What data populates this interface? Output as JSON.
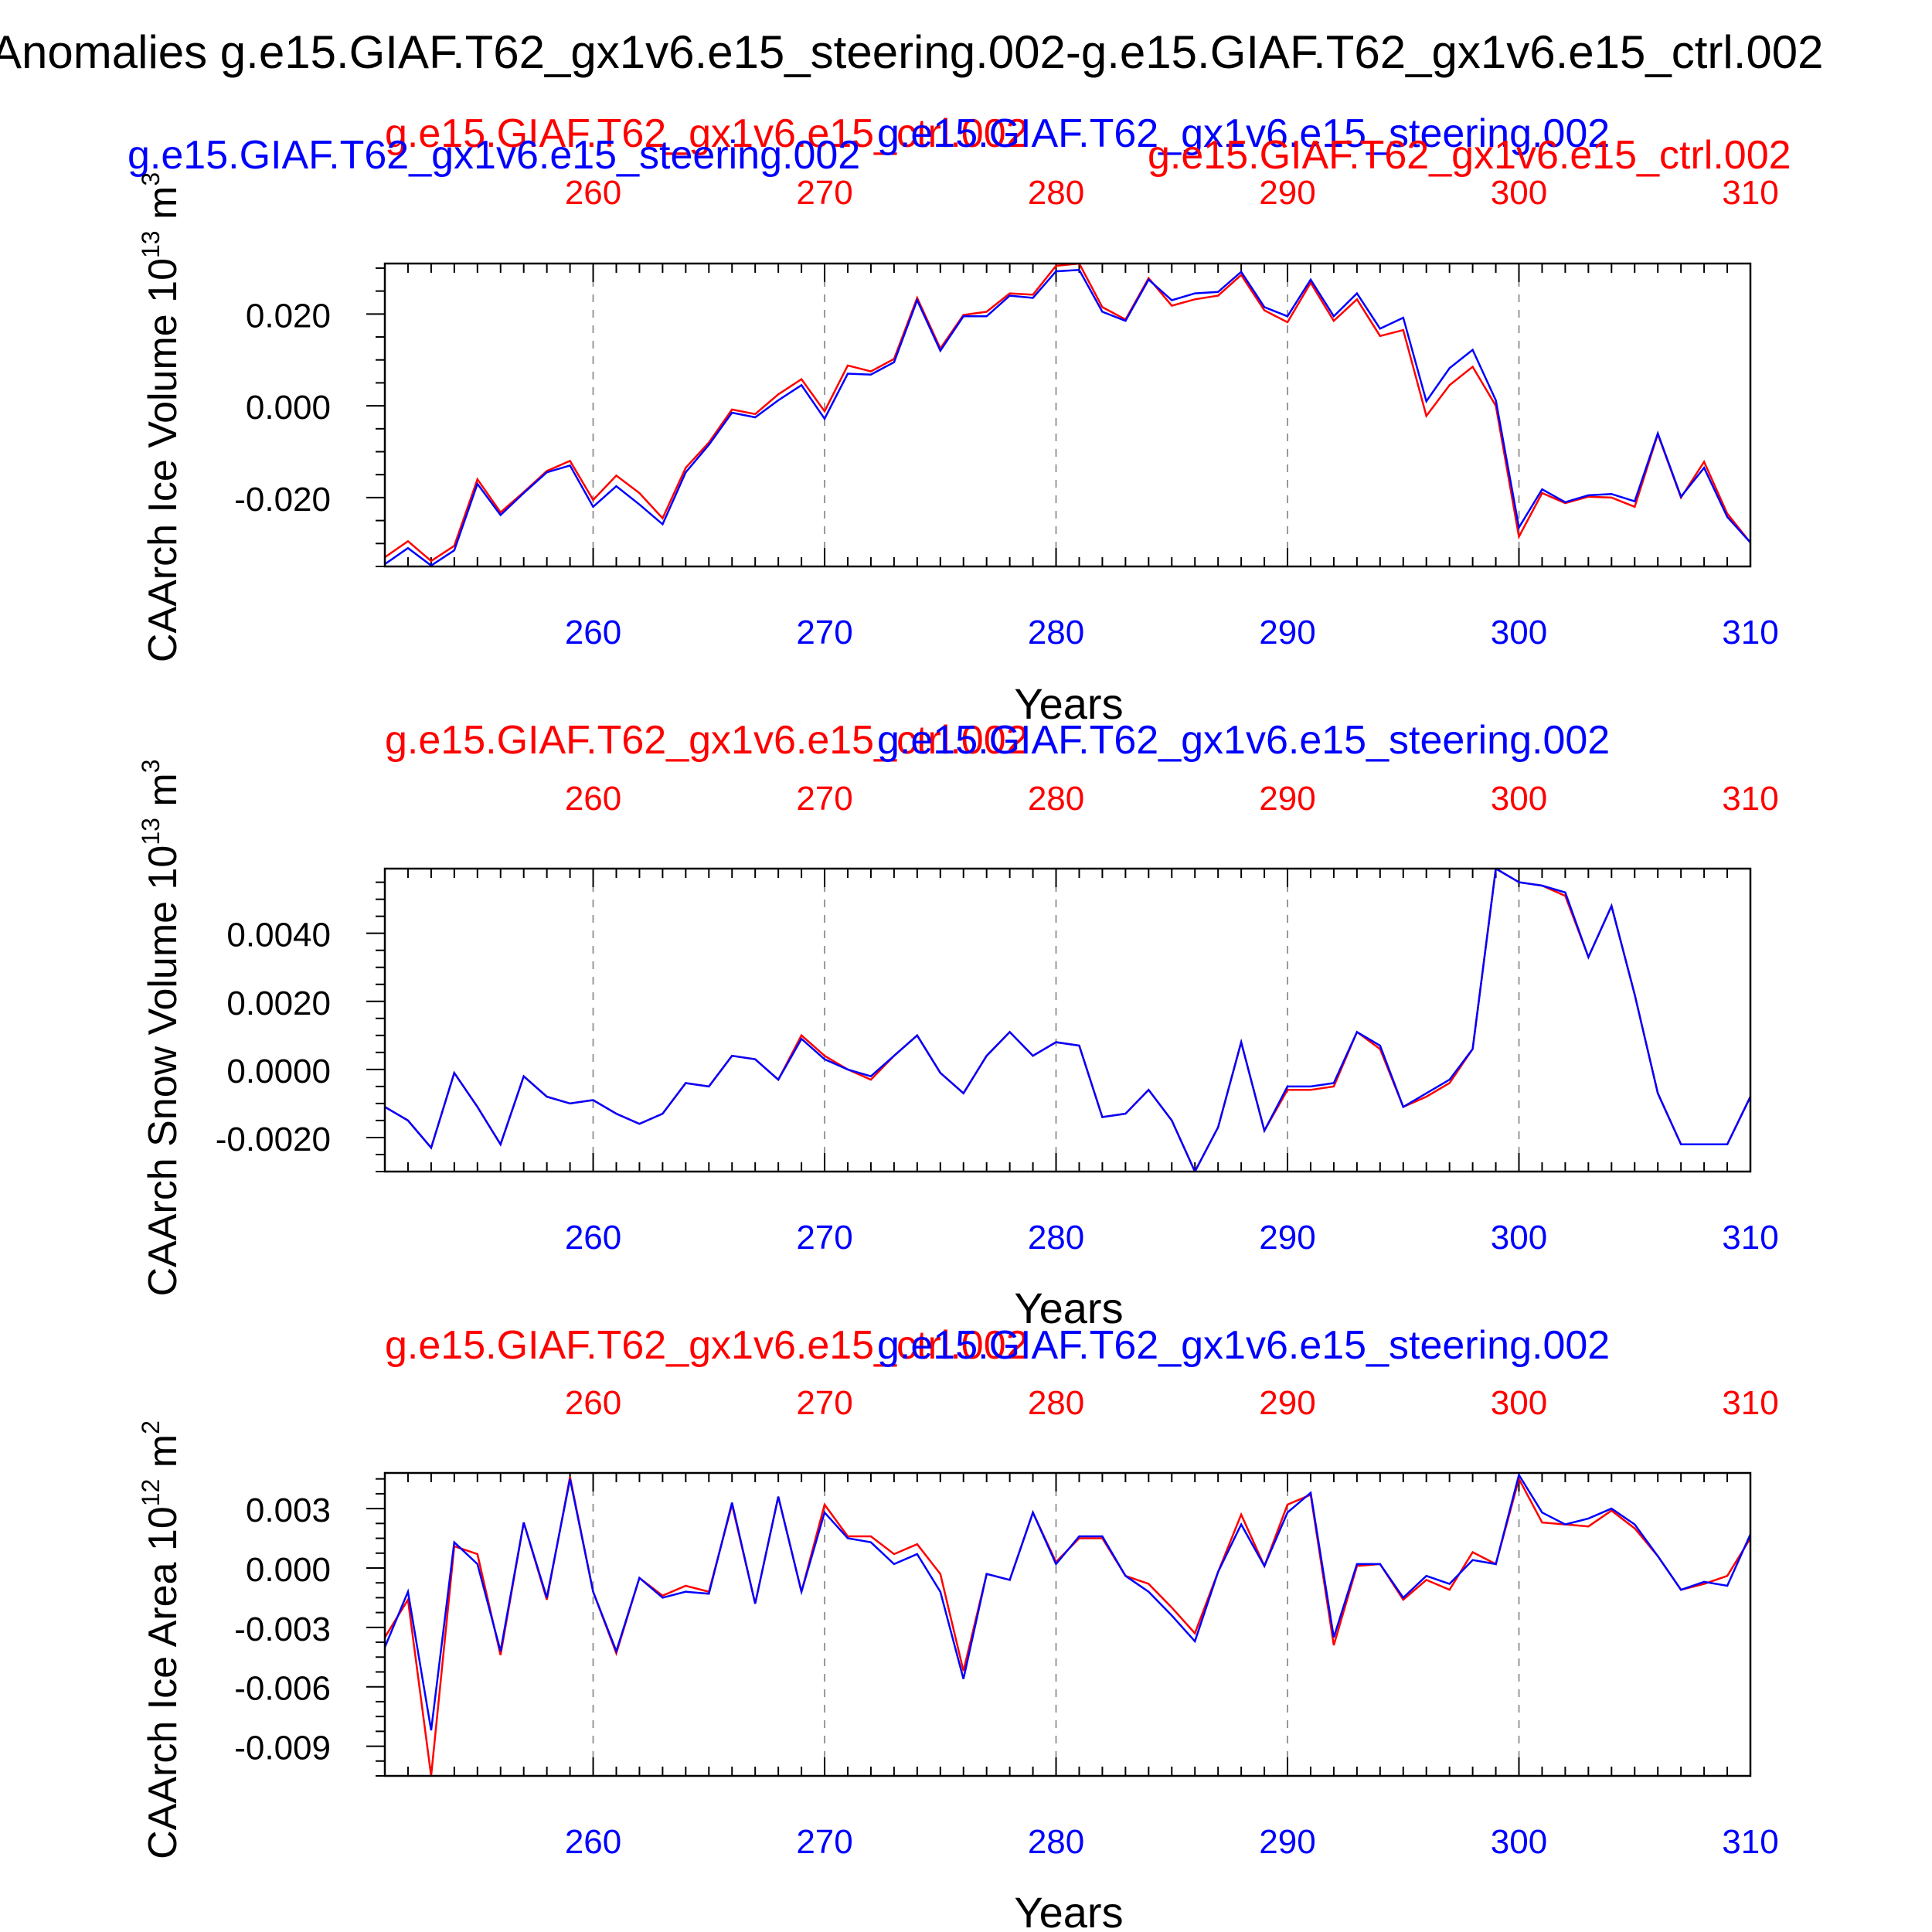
{
  "figure": {
    "title": "Anomalies g.e15.GIAF.T62_gx1v6.e15_steering.002-g.e15.GIAF.T62_gx1v6.e15_ctrl.002",
    "xlabel": "Years",
    "colors": {
      "steering": "#0000ff",
      "ctrl": "#ff0000",
      "frame": "#000000",
      "grid": "#999999"
    }
  },
  "legend_labels": {
    "steering": "g.e15.GIAF.T62_gx1v6.e15_steering.002",
    "ctrl": "g.e15.GIAF.T62_gx1v6.e15_ctrl.002"
  },
  "chart_data": [
    {
      "type": "line",
      "ylabel": "CAArch Ice Volume 10",
      "ylabel_exp": "13",
      "ylabel_unit": " m",
      "ylabel_unit_exp": "3",
      "xlim": [
        251,
        310
      ],
      "ylim": [
        -0.035,
        0.031
      ],
      "yticks": [
        -0.02,
        0.0,
        0.02
      ],
      "ytick_labels": [
        "-0.020",
        "0.000",
        "0.020"
      ],
      "xticks": [
        260,
        270,
        280,
        290,
        300,
        310
      ],
      "xtick_labels": [
        "260",
        "270",
        "280",
        "290",
        "300",
        "310"
      ],
      "x": [
        251,
        252,
        253,
        254,
        255,
        256,
        257,
        258,
        259,
        260,
        261,
        262,
        263,
        264,
        265,
        266,
        267,
        268,
        269,
        270,
        271,
        272,
        273,
        274,
        275,
        276,
        277,
        278,
        279,
        280,
        281,
        282,
        283,
        284,
        285,
        286,
        287,
        288,
        289,
        290,
        291,
        292,
        293,
        294,
        295,
        296,
        297,
        298,
        299,
        300,
        301,
        302,
        303,
        304,
        305,
        306,
        307,
        308,
        309,
        310
      ],
      "series": [
        {
          "name": "g.e15.GIAF.T62_gx1v6.e15_steering.002",
          "color": "#0000ff",
          "values": [
            -0.0345,
            -0.031,
            -0.0348,
            -0.0315,
            -0.017,
            -0.0238,
            -0.019,
            -0.0145,
            -0.013,
            -0.022,
            -0.0175,
            -0.0215,
            -0.0258,
            -0.0145,
            -0.0085,
            -0.0015,
            -0.0025,
            0.0012,
            0.0045,
            -0.0028,
            0.007,
            0.0068,
            0.0095,
            0.023,
            0.012,
            0.0195,
            0.0195,
            0.024,
            0.0235,
            0.0293,
            0.0296,
            0.0205,
            0.0185,
            0.0275,
            0.023,
            0.0245,
            0.0248,
            0.0292,
            0.0215,
            0.0195,
            0.0275,
            0.0195,
            0.0245,
            0.0168,
            0.0192,
            0.001,
            0.0082,
            0.0122,
            0.0012,
            -0.0265,
            -0.0182,
            -0.021,
            -0.0195,
            -0.0192,
            -0.0208,
            -0.006,
            -0.0198,
            -0.0135,
            -0.0242,
            -0.0298
          ]
        },
        {
          "name": "g.e15.GIAF.T62_gx1v6.e15_ctrl.002",
          "color": "#ff0000",
          "values": [
            -0.033,
            -0.0295,
            -0.0338,
            -0.0305,
            -0.016,
            -0.0232,
            -0.0188,
            -0.0142,
            -0.012,
            -0.0205,
            -0.0152,
            -0.019,
            -0.0245,
            -0.0135,
            -0.008,
            -0.0008,
            -0.0018,
            0.0025,
            0.0058,
            -0.0012,
            0.0088,
            0.0075,
            0.0102,
            0.0235,
            0.0125,
            0.0198,
            0.0205,
            0.0245,
            0.0242,
            0.0305,
            0.031,
            0.0215,
            0.0188,
            0.0278,
            0.0218,
            0.0232,
            0.024,
            0.0285,
            0.0208,
            0.0182,
            0.0268,
            0.0185,
            0.0232,
            0.0152,
            0.0165,
            -0.0022,
            0.0045,
            0.0085,
            0.0,
            -0.0285,
            -0.019,
            -0.0212,
            -0.0198,
            -0.02,
            -0.022,
            -0.0062,
            -0.02,
            -0.0122,
            -0.0235,
            -0.0298
          ]
        }
      ]
    },
    {
      "type": "line",
      "ylabel": "CAArch Snow Volume 10",
      "ylabel_exp": "13",
      "ylabel_unit": " m",
      "ylabel_unit_exp": "3",
      "xlim": [
        251,
        310
      ],
      "ylim": [
        -0.003,
        0.0059
      ],
      "yticks": [
        -0.002,
        0.0,
        0.002,
        0.004
      ],
      "ytick_labels": [
        "-0.0020",
        "0.0000",
        "0.0020",
        "0.0040"
      ],
      "xticks": [
        260,
        270,
        280,
        290,
        300,
        310
      ],
      "xtick_labels": [
        "260",
        "270",
        "280",
        "290",
        "300",
        "310"
      ],
      "x": [
        251,
        252,
        253,
        254,
        255,
        256,
        257,
        258,
        259,
        260,
        261,
        262,
        263,
        264,
        265,
        266,
        267,
        268,
        269,
        270,
        271,
        272,
        273,
        274,
        275,
        276,
        277,
        278,
        279,
        280,
        281,
        282,
        283,
        284,
        285,
        286,
        287,
        288,
        289,
        290,
        291,
        292,
        293,
        294,
        295,
        296,
        297,
        298,
        299,
        300,
        301,
        302,
        303,
        304,
        305,
        306,
        307,
        308,
        309,
        310
      ],
      "series": [
        {
          "name": "g.e15.GIAF.T62_gx1v6.e15_steering.002",
          "color": "#0000ff",
          "values": [
            -0.0011,
            -0.0015,
            -0.0023,
            -0.0001,
            -0.0011,
            -0.0022,
            -0.0002,
            -0.0008,
            -0.001,
            -0.0009,
            -0.0013,
            -0.0016,
            -0.0013,
            -0.0004,
            -0.0005,
            0.0004,
            0.0003,
            -0.0003,
            0.0009,
            0.0003,
            0.0,
            -0.0002,
            0.0004,
            0.001,
            -0.0001,
            -0.0007,
            0.0004,
            0.0011,
            0.0004,
            0.0008,
            0.0007,
            -0.0014,
            -0.0013,
            -0.0006,
            -0.0015,
            -0.003,
            -0.0017,
            0.0008,
            -0.0018,
            -0.0005,
            -0.0005,
            -0.0004,
            0.0011,
            0.0007,
            -0.0011,
            -0.0007,
            -0.0003,
            0.0006,
            0.0059,
            0.0055,
            0.0054,
            0.0052,
            0.0033,
            0.0048,
            0.0022,
            -0.0007,
            -0.0022,
            -0.0022,
            -0.0022,
            -0.0008
          ]
        },
        {
          "name": "g.e15.GIAF.T62_gx1v6.e15_ctrl.002",
          "color": "#ff0000",
          "values": [
            -0.0011,
            -0.0015,
            -0.0023,
            -0.0001,
            -0.0011,
            -0.0022,
            -0.0002,
            -0.0008,
            -0.001,
            -0.0009,
            -0.0013,
            -0.0016,
            -0.0013,
            -0.0004,
            -0.0005,
            0.0004,
            0.0003,
            -0.0003,
            0.001,
            0.0004,
            0.0,
            -0.0003,
            0.0004,
            0.001,
            -0.0001,
            -0.0007,
            0.0004,
            0.0011,
            0.0004,
            0.0008,
            0.0007,
            -0.0014,
            -0.0013,
            -0.0006,
            -0.0015,
            -0.003,
            -0.0017,
            0.0008,
            -0.0018,
            -0.0006,
            -0.0006,
            -0.0005,
            0.0011,
            0.0006,
            -0.0011,
            -0.0008,
            -0.0004,
            0.0006,
            0.0059,
            0.0055,
            0.0054,
            0.0051,
            0.0033,
            0.0048,
            0.0022,
            -0.0007,
            -0.0022,
            -0.0022,
            -0.0022,
            -0.0008
          ]
        }
      ]
    },
    {
      "type": "line",
      "ylabel": "CAArch Ice Area 10",
      "ylabel_exp": "12",
      "ylabel_unit": " m",
      "ylabel_unit_exp": "2",
      "xlim": [
        251,
        310
      ],
      "ylim": [
        -0.0105,
        0.0048
      ],
      "yticks": [
        -0.009,
        -0.006,
        -0.003,
        0.0,
        0.003
      ],
      "ytick_labels": [
        "-0.009",
        "-0.006",
        "-0.003",
        "0.000",
        "0.003"
      ],
      "xticks": [
        260,
        270,
        280,
        290,
        300,
        310
      ],
      "xtick_labels": [
        "260",
        "270",
        "280",
        "290",
        "300",
        "310"
      ],
      "x": [
        251,
        252,
        253,
        254,
        255,
        256,
        257,
        258,
        259,
        260,
        261,
        262,
        263,
        264,
        265,
        266,
        267,
        268,
        269,
        270,
        271,
        272,
        273,
        274,
        275,
        276,
        277,
        278,
        279,
        280,
        281,
        282,
        283,
        284,
        285,
        286,
        287,
        288,
        289,
        290,
        291,
        292,
        293,
        294,
        295,
        296,
        297,
        298,
        299,
        300,
        301,
        302,
        303,
        304,
        305,
        306,
        307,
        308,
        309,
        310
      ],
      "series": [
        {
          "name": "g.e15.GIAF.T62_gx1v6.e15_steering.002",
          "color": "#0000ff",
          "values": [
            -0.004,
            -0.0012,
            -0.0082,
            0.0013,
            0.0002,
            -0.0042,
            0.0023,
            -0.0015,
            0.0045,
            -0.0012,
            -0.0042,
            -0.0005,
            -0.0015,
            -0.0012,
            -0.0013,
            0.0033,
            -0.0018,
            0.0036,
            -0.0012,
            0.0028,
            0.0015,
            0.0013,
            0.0002,
            0.0007,
            -0.0012,
            -0.0056,
            -0.0003,
            -0.0006,
            0.0028,
            0.0002,
            0.0016,
            0.0016,
            -0.0004,
            -0.0012,
            -0.0024,
            -0.0037,
            -0.0002,
            0.0022,
            0.0001,
            0.0028,
            0.0038,
            -0.0035,
            0.0002,
            0.0002,
            -0.0015,
            -0.0004,
            -0.0008,
            0.0004,
            0.0002,
            0.0047,
            0.0028,
            0.0022,
            0.0025,
            0.003,
            0.0022,
            0.0006,
            -0.0011,
            -0.0007,
            -0.0009,
            0.0017
          ]
        },
        {
          "name": "g.e15.GIAF.T62_gx1v6.e15_ctrl.002",
          "color": "#ff0000",
          "values": [
            -0.0035,
            -0.0016,
            -0.0105,
            0.0011,
            0.0007,
            -0.0044,
            0.0023,
            -0.0016,
            0.0046,
            -0.0012,
            -0.0043,
            -0.0005,
            -0.0014,
            -0.0009,
            -0.0012,
            0.0032,
            -0.0018,
            0.0036,
            -0.0012,
            0.0032,
            0.0016,
            0.0016,
            0.0007,
            0.0012,
            -0.0003,
            -0.0052,
            -0.0003,
            -0.0006,
            0.0028,
            0.0003,
            0.0015,
            0.0015,
            -0.0004,
            -0.0008,
            -0.002,
            -0.0033,
            -0.0002,
            0.0027,
            0.0001,
            0.0032,
            0.0037,
            -0.0039,
            0.0001,
            0.0002,
            -0.0016,
            -0.0006,
            -0.0011,
            0.0008,
            0.0002,
            0.0045,
            0.0023,
            0.0022,
            0.0021,
            0.0029,
            0.002,
            0.0006,
            -0.0011,
            -0.0008,
            -0.0004,
            0.0015
          ]
        }
      ]
    }
  ]
}
